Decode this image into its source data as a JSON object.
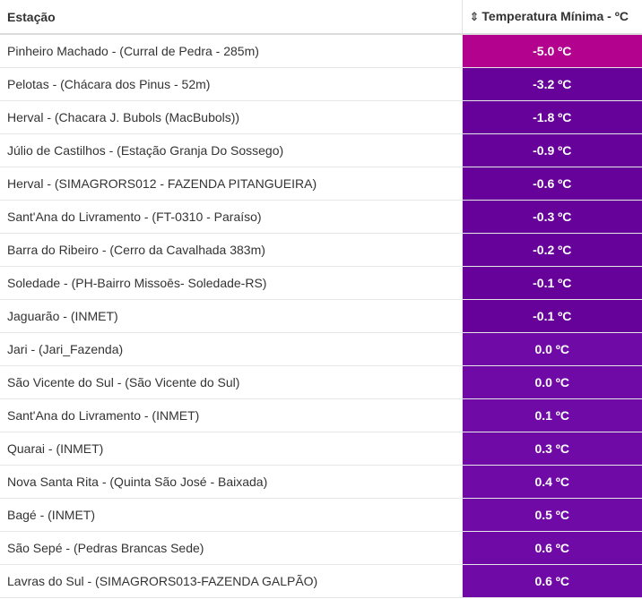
{
  "table": {
    "headers": {
      "station": "Estação",
      "temperature": "Temperatura Mínima - ºC",
      "sort_icon": "sort-icon"
    },
    "rows": [
      {
        "station": "Pinheiro Machado - (Curral de Pedra - 285m)",
        "temp": "-5.0 ºC",
        "color": "#b3028e"
      },
      {
        "station": "Pelotas - (Chácara dos Pinus - 52m)",
        "temp": "-3.2 ºC",
        "color": "#66029a"
      },
      {
        "station": "Herval - (Chacara J. Bubols (MacBubols))",
        "temp": "-1.8 ºC",
        "color": "#66029a"
      },
      {
        "station": "Júlio de Castilhos - (Estação Granja Do Sossego)",
        "temp": "-0.9 ºC",
        "color": "#66029a"
      },
      {
        "station": "Herval - (SIMAGRORS012 - FAZENDA PITANGUEIRA)",
        "temp": "-0.6 ºC",
        "color": "#66029a"
      },
      {
        "station": "Sant'Ana do Livramento - (FT-0310 - Paraíso)",
        "temp": "-0.3 ºC",
        "color": "#66029a"
      },
      {
        "station": "Barra do Ribeiro - (Cerro da Cavalhada 383m)",
        "temp": "-0.2 ºC",
        "color": "#66029a"
      },
      {
        "station": "Soledade - (PH-Bairro Missoēs- Soledade-RS)",
        "temp": "-0.1 ºC",
        "color": "#66029a"
      },
      {
        "station": "Jaguarão - (INMET)",
        "temp": "-0.1 ºC",
        "color": "#66029a"
      },
      {
        "station": "Jari - (Jari_Fazenda)",
        "temp": "0.0 ºC",
        "color": "#6f0aa6"
      },
      {
        "station": "São Vicente do Sul - (São Vicente do Sul)",
        "temp": "0.0 ºC",
        "color": "#6f0aa6"
      },
      {
        "station": "Sant'Ana do Livramento - (INMET)",
        "temp": "0.1 ºC",
        "color": "#6f0aa6"
      },
      {
        "station": "Quarai - (INMET)",
        "temp": "0.3 ºC",
        "color": "#6f0aa6"
      },
      {
        "station": "Nova Santa Rita - (Quinta São José - Baixada)",
        "temp": "0.4 ºC",
        "color": "#6f0aa6"
      },
      {
        "station": "Bagé - (INMET)",
        "temp": "0.5 ºC",
        "color": "#6f0aa6"
      },
      {
        "station": "São Sepé - (Pedras Brancas Sede)",
        "temp": "0.6 ºC",
        "color": "#6f0aa6"
      },
      {
        "station": "Lavras do Sul - (SIMAGRORS013-FAZENDA GALPÃO)",
        "temp": "0.6 ºC",
        "color": "#6f0aa6"
      }
    ]
  }
}
